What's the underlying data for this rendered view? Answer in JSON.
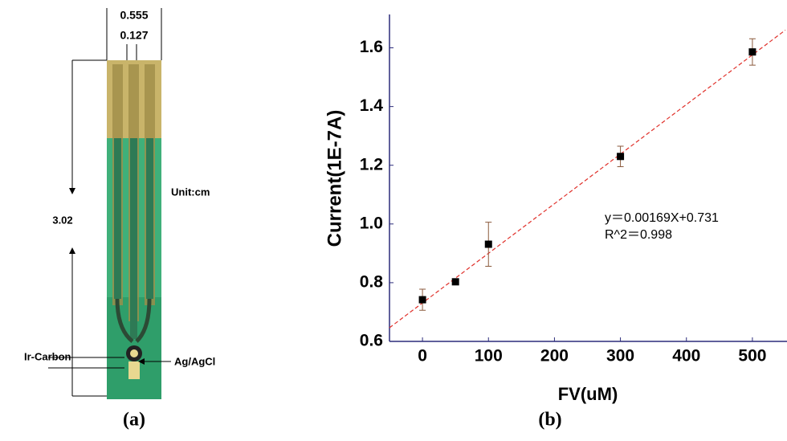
{
  "panel_a": {
    "label": "(a)",
    "width_top": "0.555",
    "width_gap": "0.127",
    "length": "3.02",
    "unit": "Unit:cm",
    "electrode_left": "Ir-Carbon",
    "electrode_right": "Ag/AgCl"
  },
  "chart_data": {
    "type": "scatter",
    "panel_label": "(b)",
    "x_label": "FV(uM)",
    "y_label": "Current(1E-7A)",
    "xlim": [
      -50,
      550
    ],
    "xticks": [
      0,
      100,
      200,
      300,
      400,
      500
    ],
    "ylim": [
      0.6,
      1.7
    ],
    "yticks": [
      {
        "value": 0.6,
        "label": "0.6"
      },
      {
        "value": 0.8,
        "label": "0.8"
      },
      {
        "value": 1.0,
        "label": "1.0"
      },
      {
        "value": 1.2,
        "label": "1.2"
      },
      1.4,
      1.6
    ],
    "x": [
      0,
      50,
      100,
      300,
      500
    ],
    "series": [
      {
        "color": "#000000",
        "values": [
          0.742,
          0.803,
          0.931,
          1.23,
          1.586
        ],
        "errors": [
          0.036,
          null,
          0.075,
          0.035,
          0.045
        ],
        "error_color": "#8b5a3c"
      }
    ],
    "fit": {
      "slope": 0.00169,
      "intercept": 0.731,
      "color": "#e0302a"
    },
    "annotations": [
      "y＝0.00169X+0.731",
      "R^2＝0.998"
    ]
  }
}
